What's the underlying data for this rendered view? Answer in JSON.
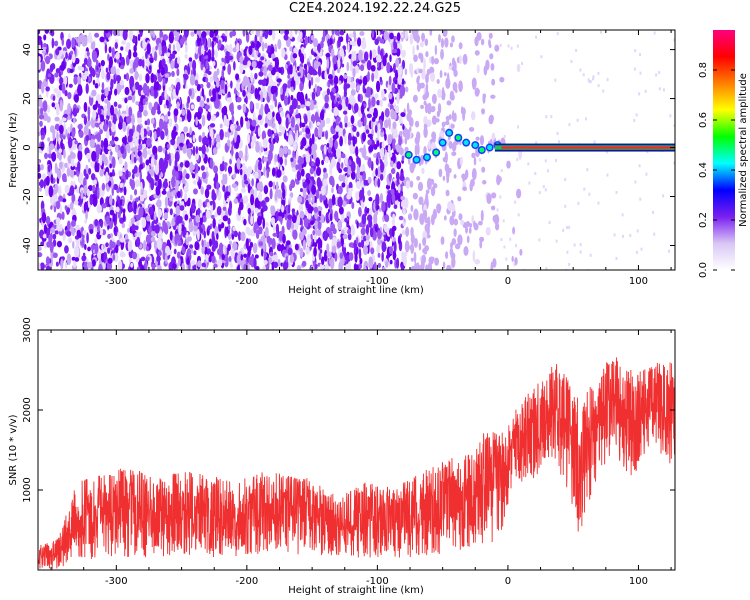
{
  "title": "C2E4.2024.192.22.24.G25",
  "chart_data": [
    {
      "type": "heatmap",
      "description_note": "",
      "xlabel": "Height of straight line (km)",
      "ylabel": "Frequency (Hz)",
      "xlim": [
        -360,
        128
      ],
      "ylim": [
        -50,
        48
      ],
      "x_ticks": [
        -300,
        -200,
        -100,
        0,
        100
      ],
      "y_ticks": [
        -40,
        -20,
        0,
        20,
        40
      ],
      "colorbar": {
        "label": "Normalized spectral amplitude",
        "range": [
          0,
          0.96
        ],
        "ticks": [
          0.0,
          0.2,
          0.4,
          0.6,
          0.8
        ],
        "colors": [
          "#ffffff",
          "#d9c6f5",
          "#7a1ff0",
          "#0000ff",
          "#00ffff",
          "#00ff00",
          "#ffff00",
          "#ff7f00",
          "#ff0000",
          "#ff007f"
        ]
      },
      "carrier_line": {
        "frequency_hz": 0,
        "x_start": -10,
        "x_end": 128
      },
      "noise_region": {
        "x_start": -360,
        "x_end": -80
      },
      "transition_region": {
        "x_start": -80,
        "x_end": -5
      }
    },
    {
      "type": "line",
      "xlabel": "Height of straight line (km)",
      "ylabel": "SNR (10 * v/v)",
      "xlim": [
        -360,
        128
      ],
      "ylim": [
        0,
        3000
      ],
      "x_ticks": [
        -300,
        -200,
        -100,
        0,
        100
      ],
      "y_ticks": [
        1000,
        2000,
        3000
      ],
      "series": [
        {
          "color": "#f03030",
          "envelope": {
            "x": [
              -360,
              -345,
              -330,
              -310,
              -290,
              -270,
              -250,
              -230,
              -210,
              -190,
              -170,
              -150,
              -130,
              -110,
              -90,
              -70,
              -50,
              -30,
              -15,
              -5,
              5,
              20,
              35,
              45,
              55,
              65,
              80,
              95,
              110,
              128
            ],
            "upper": [
              300,
              400,
              1100,
              1200,
              1300,
              1150,
              1250,
              1200,
              1100,
              1250,
              1200,
              1150,
              900,
              1100,
              1050,
              1200,
              1400,
              1450,
              1800,
              1700,
              2000,
              2300,
              2600,
              2500,
              2100,
              2350,
              2700,
              2500,
              2600,
              2600
            ],
            "lower": [
              0,
              0,
              100,
              150,
              150,
              150,
              200,
              150,
              150,
              200,
              150,
              200,
              150,
              150,
              150,
              150,
              200,
              250,
              300,
              400,
              1100,
              1100,
              1400,
              1000,
              400,
              1000,
              1500,
              1100,
              1600,
              1200
            ]
          }
        }
      ]
    }
  ]
}
